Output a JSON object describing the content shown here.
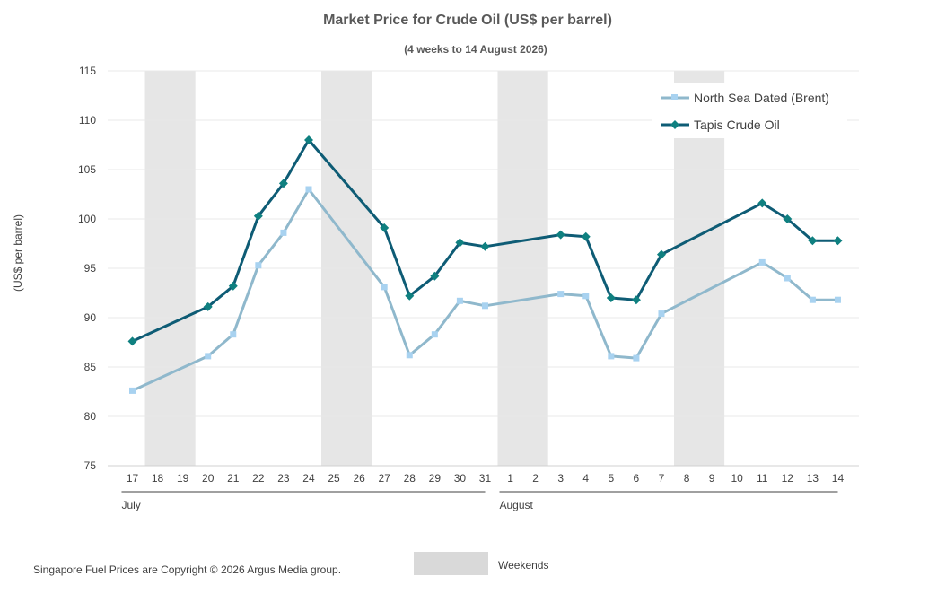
{
  "chart_data": {
    "type": "line",
    "title": "Market Price for Crude Oil (US$ per barrel)",
    "subtitle": "(4 weeks to 14 August  2026)",
    "ylabel": "(US$ per barrel)",
    "ylim": [
      75,
      115
    ],
    "yticks": [
      "75",
      "80",
      "85",
      "90",
      "95",
      "100",
      "105",
      "110",
      "115"
    ],
    "grid": true,
    "legend_position": "top-right",
    "x": [
      "17",
      "18",
      "19",
      "20",
      "21",
      "22",
      "23",
      "24",
      "25",
      "26",
      "27",
      "28",
      "29",
      "30",
      "31",
      "1",
      "2",
      "3",
      "4",
      "5",
      "6",
      "7",
      "8",
      "9",
      "10",
      "11",
      "12",
      "13",
      "14"
    ],
    "months": [
      {
        "label": "July",
        "start": 0,
        "end": 14
      },
      {
        "label": "August",
        "start": 15,
        "end": 28
      }
    ],
    "weekends": [
      [
        1,
        2
      ],
      [
        8,
        9
      ],
      [
        15,
        16
      ],
      [
        22,
        23
      ]
    ],
    "series": [
      {
        "name": "North Sea Dated (Brent)",
        "color": "#8FB8CC",
        "marker_color": "#A8D2F0",
        "marker": "square",
        "values": [
          82.6,
          null,
          null,
          86.1,
          88.3,
          95.3,
          98.6,
          103.0,
          null,
          null,
          93.1,
          86.2,
          88.3,
          91.7,
          91.2,
          null,
          null,
          92.4,
          92.2,
          86.1,
          85.9,
          90.4,
          null,
          null,
          null,
          95.6,
          94.0,
          91.8,
          91.8
        ]
      },
      {
        "name": "Tapis Crude Oil",
        "color": "#0E5C75",
        "marker_color": "#0F8080",
        "marker": "diamond",
        "values": [
          87.6,
          null,
          null,
          91.1,
          93.2,
          100.3,
          103.6,
          108.0,
          null,
          null,
          99.1,
          92.2,
          94.2,
          97.6,
          97.2,
          null,
          null,
          98.4,
          98.2,
          92.0,
          91.8,
          96.4,
          null,
          null,
          null,
          101.6,
          100.0,
          97.8,
          97.8
        ]
      }
    ]
  },
  "footer": {
    "copyright": "Singapore Fuel Prices are Copyright © 2026 Argus Media group.",
    "weekends_label": "Weekends"
  }
}
